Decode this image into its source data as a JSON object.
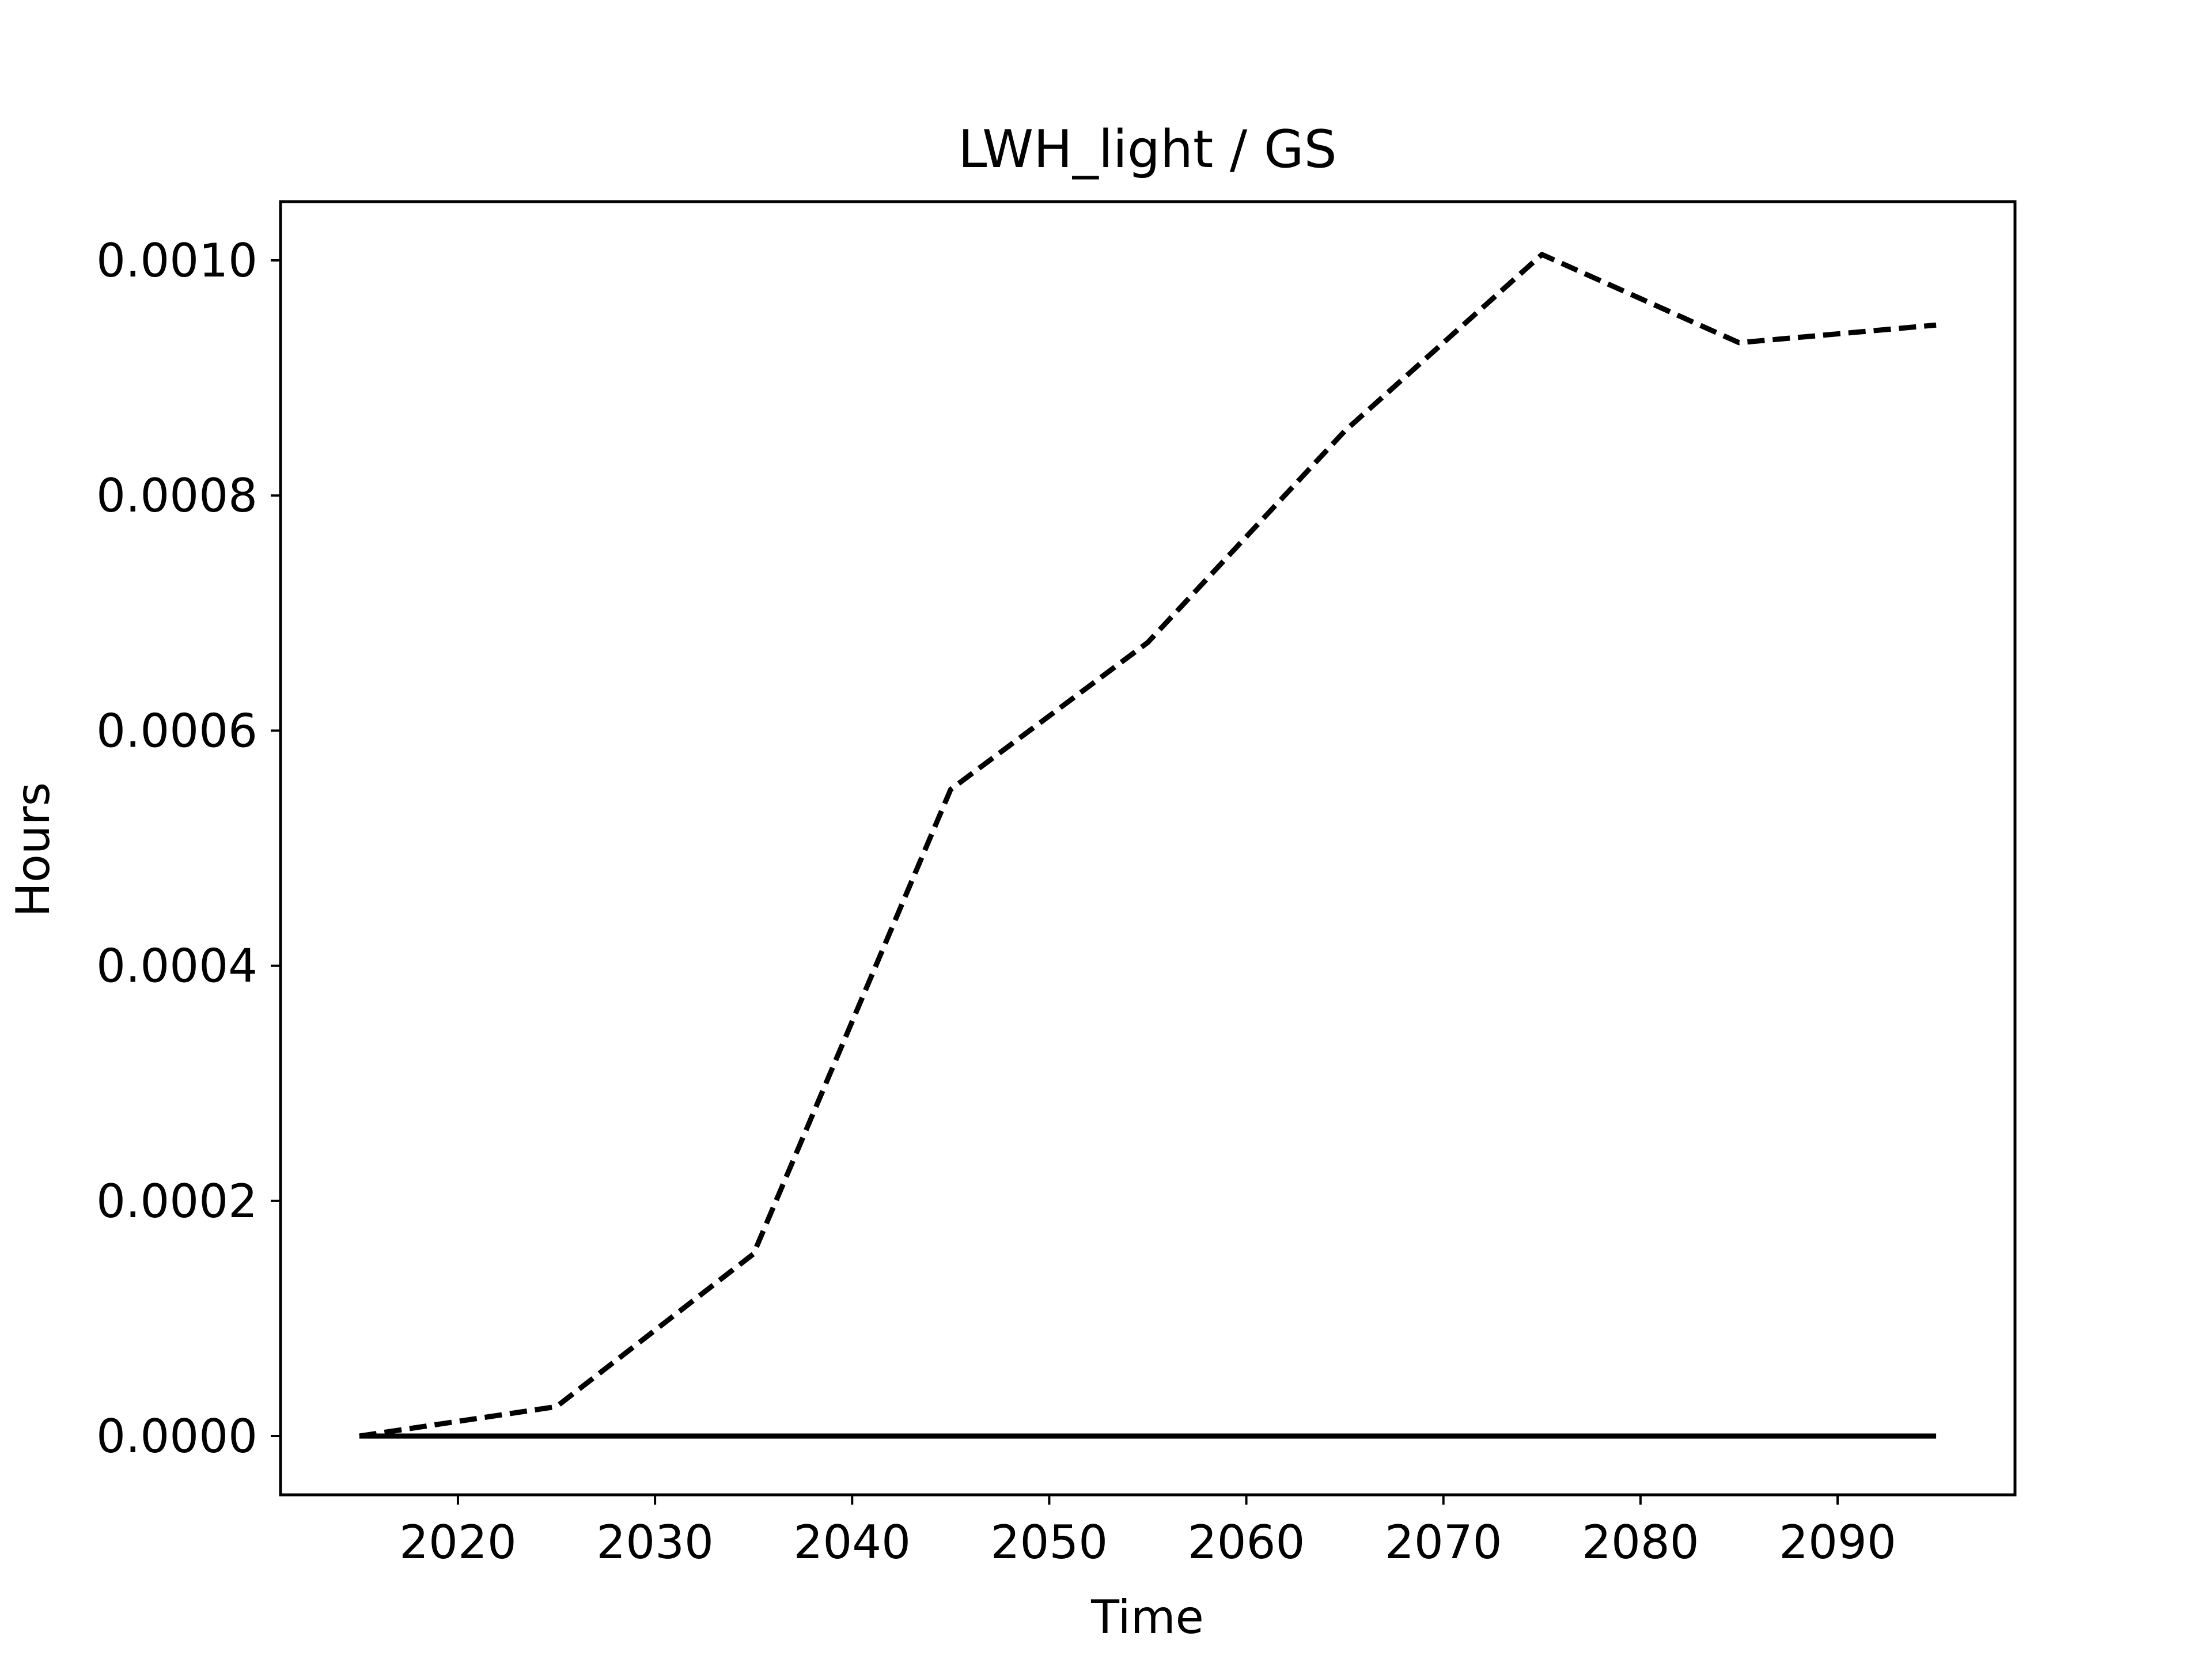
{
  "chart_data": {
    "type": "line",
    "title": "LWH_light / GS",
    "xlabel": "Time",
    "ylabel": "Hours",
    "xlim": [
      2011,
      2099
    ],
    "ylim": [
      -5e-05,
      0.00105
    ],
    "xticks": [
      2020,
      2030,
      2040,
      2050,
      2060,
      2070,
      2080,
      2090
    ],
    "yticks": [
      0.0,
      0.0002,
      0.0004,
      0.0006,
      0.0008,
      0.001
    ],
    "ytick_labels": [
      "0.0000",
      "0.0002",
      "0.0004",
      "0.0006",
      "0.0008",
      "0.0010"
    ],
    "grid": false,
    "x": [
      2015,
      2025,
      2035,
      2045,
      2055,
      2065,
      2075,
      2085,
      2095
    ],
    "series": [
      {
        "style": "dashed",
        "color": "#000000",
        "values": [
          0.0,
          2.5e-05,
          0.000155,
          0.00055,
          0.000675,
          0.000855,
          0.001005,
          0.00093,
          0.000945
        ]
      },
      {
        "style": "solid",
        "color": "#000000",
        "values": [
          0.0,
          0.0,
          0.0,
          0.0,
          0.0,
          0.0,
          0.0,
          0.0,
          0.0
        ]
      }
    ]
  }
}
